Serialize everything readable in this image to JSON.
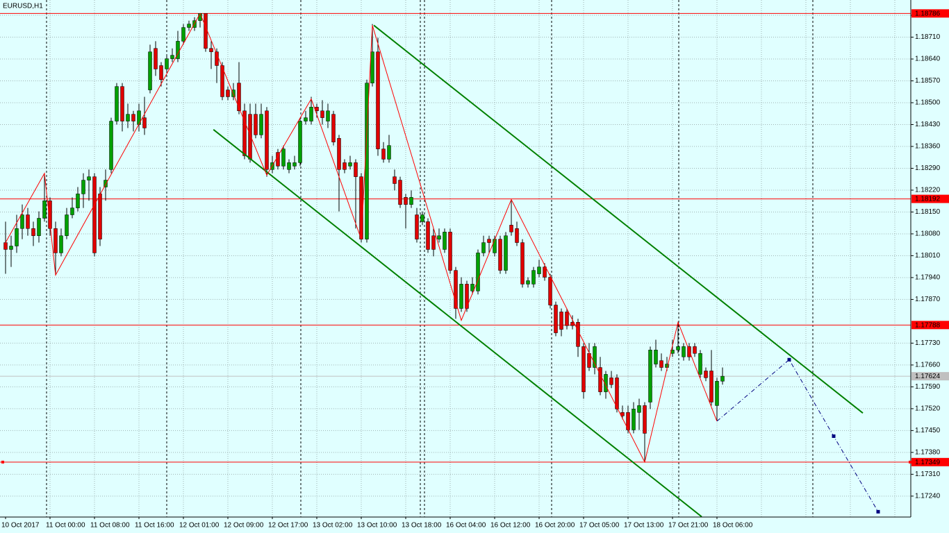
{
  "chart_data": {
    "type": "candlestick",
    "title": "EURUSD,H1",
    "categories": [
      "10 Oct 2017",
      null,
      null,
      null,
      null,
      null,
      null,
      null,
      "11 Oct 00:00",
      null,
      null,
      null,
      null,
      null,
      null,
      null,
      "11 Oct 08:00",
      null,
      null,
      null,
      null,
      null,
      null,
      null,
      "11 Oct 16:00",
      null,
      null,
      null,
      null,
      null,
      null,
      null,
      "12 Oct 01:00",
      null,
      null,
      null,
      null,
      null,
      null,
      null,
      "12 Oct 09:00",
      null,
      null,
      null,
      null,
      null,
      null,
      null,
      "12 Oct 17:00",
      null,
      null,
      null,
      null,
      null,
      null,
      null,
      "13 Oct 02:00",
      null,
      null,
      null,
      null,
      null,
      null,
      null,
      "13 Oct 10:00",
      null,
      null,
      null,
      null,
      null,
      null,
      null,
      "13 Oct 18:00",
      null,
      null,
      null,
      null,
      null,
      null,
      null,
      "16 Oct 04:00",
      null,
      null,
      null,
      null,
      null,
      null,
      null,
      "16 Oct 12:00",
      null,
      null,
      null,
      null,
      null,
      null,
      null,
      "16 Oct 20:00",
      null,
      null,
      null,
      null,
      null,
      null,
      null,
      "17 Oct 05:00",
      null,
      null,
      null,
      null,
      null,
      null,
      null,
      "17 Oct 13:00",
      null,
      null,
      null,
      null,
      null,
      null,
      null,
      "17 Oct 21:00",
      null,
      null,
      null,
      null,
      null,
      null,
      null,
      "18 Oct 06:00",
      null
    ],
    "open": [
      1.18052,
      1.1803,
      1.18041,
      1.18097,
      1.18141,
      1.18097,
      1.18074,
      1.1813,
      1.18186,
      1.18097,
      1.18019,
      1.18074,
      1.18141,
      1.18163,
      1.18208,
      1.18252,
      1.18263,
      1.18208,
      1.1823,
      1.18286,
      1.18441,
      1.18552,
      1.18441,
      1.18463,
      1.1843,
      1.18452,
      1.18541,
      1.18674,
      1.18619,
      1.18608,
      1.18641,
      1.18641,
      1.18697,
      1.18741,
      1.18741,
      1.18763,
      1.18786,
      1.18674,
      1.18663,
      1.18619,
      1.18541,
      1.18519,
      1.18563,
      1.18474,
      1.18463,
      1.18463,
      1.18397,
      1.18474,
      1.18286,
      1.18341,
      1.18297,
      1.18286,
      1.18297,
      1.18308,
      1.18441,
      1.18441,
      1.18486,
      1.18474,
      1.18441,
      1.18463,
      1.18386,
      1.18308,
      1.18297,
      1.18308,
      1.18263,
      1.18063,
      1.18563,
      1.18663,
      1.18352,
      1.18319,
      1.18263,
      1.18252,
      1.18197,
      1.18174,
      1.18141,
      1.18119,
      1.18119,
      1.18074,
      1.18063,
      1.1803,
      1.18086,
      1.17963,
      1.17841,
      1.17919,
      1.17897,
      1.17897,
      1.18019,
      1.18063,
      1.18019,
      1.18063,
      1.17963,
      1.18108,
      1.18097,
      1.18052,
      1.17919,
      1.17919,
      1.17952,
      1.17974,
      1.17941,
      1.17852,
      1.1783,
      1.1783,
      1.17797,
      1.17797,
      1.17719,
      1.17697,
      1.17652,
      1.17652,
      1.17574,
      1.17619,
      1.17619,
      1.17508,
      1.17508,
      1.17452,
      1.17508,
      1.1753,
      1.17541,
      1.17663,
      1.17674,
      1.17652,
      1.17697,
      1.17708,
      1.17686,
      1.17719,
      1.17719,
      1.1763,
      1.17641,
      1.17641,
      1.1753,
      1.17608
    ],
    "high": [
      1.18119,
      1.18074,
      1.18141,
      1.18174,
      1.18163,
      1.18119,
      1.18152,
      1.18274,
      1.18197,
      1.18119,
      1.18097,
      1.18163,
      1.18197,
      1.1823,
      1.18274,
      1.18286,
      1.18274,
      1.1823,
      1.18286,
      1.18452,
      1.18563,
      1.18563,
      1.18497,
      1.18474,
      1.18497,
      1.18519,
      1.18686,
      1.18697,
      1.1863,
      1.18652,
      1.18674,
      1.1873,
      1.18752,
      1.18763,
      1.18774,
      1.18786,
      1.18786,
      1.18697,
      1.18674,
      1.1863,
      1.18552,
      1.18563,
      1.1863,
      1.18497,
      1.18497,
      1.18497,
      1.18497,
      1.18486,
      1.1833,
      1.18352,
      1.18363,
      1.18319,
      1.1833,
      1.18452,
      1.18474,
      1.18519,
      1.18497,
      1.18508,
      1.18497,
      1.18474,
      1.18397,
      1.18319,
      1.1833,
      1.18319,
      1.18274,
      1.18574,
      1.18752,
      1.18708,
      1.18374,
      1.18397,
      1.18286,
      1.18263,
      1.18208,
      1.18219,
      1.18163,
      1.18152,
      1.1813,
      1.18097,
      1.18097,
      1.18097,
      1.18097,
      1.17974,
      1.17941,
      1.1793,
      1.17941,
      1.1803,
      1.18074,
      1.18074,
      1.18074,
      1.18074,
      1.18086,
      1.18186,
      1.18119,
      1.18063,
      1.17941,
      1.17974,
      1.17997,
      1.17986,
      1.17952,
      1.17863,
      1.17841,
      1.17841,
      1.17819,
      1.17808,
      1.1773,
      1.1773,
      1.1773,
      1.17686,
      1.17641,
      1.17641,
      1.1763,
      1.1753,
      1.1753,
      1.17541,
      1.17552,
      1.17541,
      1.17719,
      1.17741,
      1.17697,
      1.17686,
      1.17741,
      1.17797,
      1.1773,
      1.1773,
      1.1773,
      1.17708,
      1.17652,
      1.17708,
      1.17619,
      1.17652
    ],
    "low": [
      1.17952,
      1.17974,
      1.18019,
      1.18063,
      1.18074,
      1.18041,
      1.18052,
      1.18119,
      1.18074,
      1.17952,
      1.18008,
      1.18063,
      1.1813,
      1.18152,
      1.18163,
      1.18186,
      1.18008,
      1.18041,
      1.18186,
      1.18274,
      1.1843,
      1.18408,
      1.18419,
      1.18408,
      1.18408,
      1.18397,
      1.1853,
      1.18586,
      1.18552,
      1.18597,
      1.1863,
      1.1863,
      1.18686,
      1.1873,
      1.1873,
      1.18741,
      1.18663,
      1.18608,
      1.18563,
      1.18508,
      1.18508,
      1.18508,
      1.18463,
      1.18319,
      1.18308,
      1.18386,
      1.18386,
      1.18263,
      1.18274,
      1.18286,
      1.18286,
      1.18274,
      1.18286,
      1.18297,
      1.1843,
      1.1843,
      1.18452,
      1.1843,
      1.18419,
      1.18363,
      1.18152,
      1.18274,
      1.18286,
      1.18097,
      1.18052,
      1.18052,
      1.18552,
      1.1833,
      1.18308,
      1.18308,
      1.18219,
      1.18163,
      1.18097,
      1.18163,
      1.18052,
      1.18108,
      1.18019,
      1.18008,
      1.18052,
      1.18019,
      1.17952,
      1.17808,
      1.1783,
      1.1783,
      1.17886,
      1.17886,
      1.18008,
      1.18019,
      1.18008,
      1.17952,
      1.17952,
      1.18074,
      1.18041,
      1.17908,
      1.17908,
      1.17908,
      1.17941,
      1.1793,
      1.17841,
      1.17752,
      1.17752,
      1.17774,
      1.17774,
      1.17686,
      1.17552,
      1.17641,
      1.1763,
      1.17563,
      1.17552,
      1.17586,
      1.17508,
      1.17486,
      1.17441,
      1.17441,
      1.17452,
      1.17349,
      1.17519,
      1.17652,
      1.17641,
      1.17641,
      1.17686,
      1.17697,
      1.17674,
      1.17674,
      1.17686,
      1.17619,
      1.17608,
      1.1753,
      1.1748,
      1.17597
    ],
    "close": [
      1.1803,
      1.18041,
      1.18097,
      1.18141,
      1.18097,
      1.18074,
      1.1813,
      1.18186,
      1.18097,
      1.18019,
      1.18074,
      1.18141,
      1.18163,
      1.18208,
      1.18252,
      1.18263,
      1.18019,
      1.18063,
      1.18252,
      1.18441,
      1.18552,
      1.18441,
      1.18463,
      1.18441,
      1.18474,
      1.18419,
      1.18663,
      1.18608,
      1.18574,
      1.18641,
      1.18652,
      1.18697,
      1.18741,
      1.18752,
      1.18763,
      1.18786,
      1.18674,
      1.18663,
      1.18619,
      1.18519,
      1.18519,
      1.18541,
      1.18474,
      1.1833,
      1.18319,
      1.18397,
      1.18463,
      1.18286,
      1.18308,
      1.18297,
      1.18352,
      1.18308,
      1.18308,
      1.18441,
      1.18452,
      1.18486,
      1.18474,
      1.18452,
      1.18474,
      1.18374,
      1.18286,
      1.18286,
      1.18308,
      1.18263,
      1.18063,
      1.18563,
      1.18663,
      1.18352,
      1.18319,
      1.18363,
      1.18241,
      1.18174,
      1.18174,
      1.18197,
      1.18063,
      1.18141,
      1.1803,
      1.1803,
      1.18074,
      1.18086,
      1.17963,
      1.17841,
      1.17919,
      1.17841,
      1.17919,
      1.18019,
      1.18052,
      1.18052,
      1.18063,
      1.17963,
      1.18074,
      1.18086,
      1.18052,
      1.17919,
      1.1793,
      1.17963,
      1.17974,
      1.17941,
      1.17852,
      1.17763,
      1.17774,
      1.17786,
      1.17786,
      1.17719,
      1.17574,
      1.17652,
      1.17719,
      1.17574,
      1.1763,
      1.17597,
      1.17519,
      1.17497,
      1.17452,
      1.17519,
      1.1753,
      1.17441,
      1.17708,
      1.17708,
      1.17652,
      1.17663,
      1.17708,
      1.17719,
      1.17719,
      1.17686,
      1.17697,
      1.17697,
      1.17619,
      1.17541,
      1.17608,
      1.17624
    ],
    "up_color": "#00a000",
    "down_color": "#e00000",
    "wick_color": "#000000",
    "ylim": [
      1.17173,
      1.18829
    ],
    "yticks": [
      {
        "value": 1.1878,
        "label": "1.18780"
      },
      {
        "value": 1.1871,
        "label": "1.18710"
      },
      {
        "value": 1.1864,
        "label": "1.18640"
      },
      {
        "value": 1.1857,
        "label": "1.18570"
      },
      {
        "value": 1.185,
        "label": "1.18500"
      },
      {
        "value": 1.1843,
        "label": "1.18430"
      },
      {
        "value": 1.1836,
        "label": "1.18360"
      },
      {
        "value": 1.1829,
        "label": "1.18290"
      },
      {
        "value": 1.1822,
        "label": "1.18220"
      },
      {
        "value": 1.1815,
        "label": "1.18150"
      },
      {
        "value": 1.1808,
        "label": "1.18080"
      },
      {
        "value": 1.1801,
        "label": "1.18010"
      },
      {
        "value": 1.1794,
        "label": "1.17940"
      },
      {
        "value": 1.1787,
        "label": "1.17870"
      },
      {
        "value": 1.1773,
        "label": "1.17730"
      },
      {
        "value": 1.1766,
        "label": "1.17660"
      },
      {
        "value": 1.1759,
        "label": "1.17590"
      },
      {
        "value": 1.1752,
        "label": "1.17520"
      },
      {
        "value": 1.1745,
        "label": "1.17450"
      },
      {
        "value": 1.1738,
        "label": "1.17380"
      },
      {
        "value": 1.1731,
        "label": "1.17310"
      },
      {
        "value": 1.1724,
        "label": "1.17240"
      }
    ],
    "grid": true,
    "hlines": [
      {
        "value": 1.18786,
        "color": "#ff0000"
      },
      {
        "value": 1.18192,
        "color": "#ff0000"
      },
      {
        "value": 1.17788,
        "color": "#ff0000"
      },
      {
        "value": 1.17349,
        "color": "#ff0000"
      }
    ],
    "current_price": {
      "value": 1.17624,
      "color": "#c0c0c0"
    },
    "zigzag": {
      "color": "#ff0000",
      "x": [
        0,
        7,
        9,
        35,
        47,
        55,
        64,
        66,
        82,
        91,
        115,
        121,
        128
      ],
      "y": [
        1.18052,
        1.18274,
        1.17948,
        1.18786,
        1.18268,
        1.18512,
        1.18063,
        1.18748,
        1.17803,
        1.1819,
        1.17349,
        1.17797,
        1.1748
      ]
    },
    "channel": {
      "color": "#008000",
      "lines": [
        {
          "x": [
            66.25,
            154.25
          ],
          "y": [
            1.18748,
            1.17506
          ]
        },
        {
          "x": [
            37.4,
            125.25
          ],
          "y": [
            1.18414,
            1.17174
          ]
        }
      ]
    },
    "projection": {
      "color": "#000080",
      "x": [
        128,
        141,
        149,
        157
      ],
      "y": [
        1.1748,
        1.17677,
        1.17432,
        1.1719
      ]
    }
  }
}
